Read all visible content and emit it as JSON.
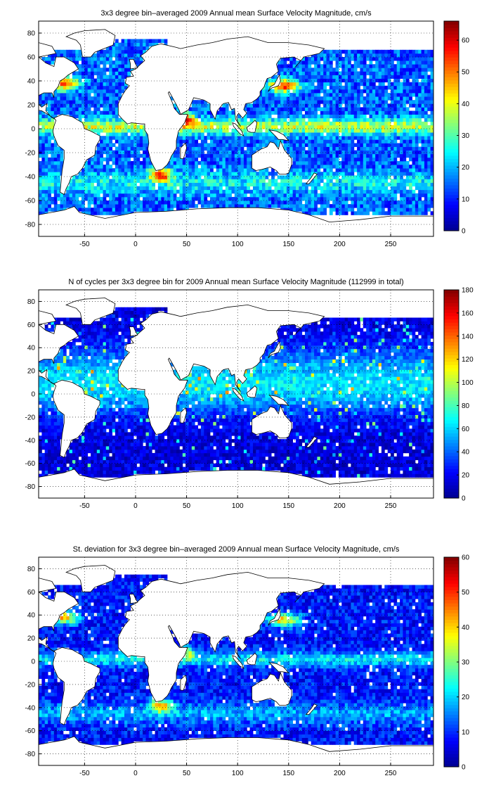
{
  "chart_data": [
    {
      "type": "heatmap",
      "title": "3x3 degree bin–averaged 2009 Annual mean Surface Velocity Magnitude, cm/s",
      "xlabel": "",
      "ylabel": "",
      "xlim": [
        -95,
        292
      ],
      "ylim": [
        -90,
        90
      ],
      "xticks": [
        -50,
        0,
        50,
        100,
        150,
        200,
        250
      ],
      "yticks": [
        -80,
        -60,
        -40,
        -20,
        0,
        20,
        40,
        60,
        80
      ],
      "grid": true,
      "colorbar": {
        "min": 0,
        "max": 66,
        "ticks": [
          0,
          10,
          20,
          30,
          40,
          50,
          60
        ]
      },
      "colormap": [
        "#00008f",
        "#0000ff",
        "#00ffff",
        "#ffff00",
        "#ff0000",
        "#800000"
      ]
    },
    {
      "type": "heatmap",
      "title": "N of cycles per 3x3 degree bin for 2009 Annual mean Surface Velocity Magnitude (112999 in total)",
      "xlabel": "",
      "ylabel": "",
      "xlim": [
        -95,
        292
      ],
      "ylim": [
        -90,
        90
      ],
      "xticks": [
        -50,
        0,
        50,
        100,
        150,
        200,
        250
      ],
      "yticks": [
        -80,
        -60,
        -40,
        -20,
        0,
        20,
        40,
        60,
        80
      ],
      "grid": true,
      "colorbar": {
        "min": 0,
        "max": 180,
        "ticks": [
          0,
          20,
          40,
          60,
          80,
          100,
          120,
          140,
          160,
          180
        ]
      },
      "colormap": [
        "#00008f",
        "#0000ff",
        "#00ffff",
        "#ffff00",
        "#ff0000",
        "#800000"
      ]
    },
    {
      "type": "heatmap",
      "title": "St. deviation for 3x3 degree bin–averaged 2009 Annual mean Surface Velocity Magnitude, cm/s",
      "xlabel": "",
      "ylabel": "",
      "xlim": [
        -95,
        292
      ],
      "ylim": [
        -90,
        90
      ],
      "xticks": [
        -50,
        0,
        50,
        100,
        150,
        200,
        250
      ],
      "yticks": [
        -80,
        -60,
        -40,
        -20,
        0,
        20,
        40,
        60,
        80
      ],
      "grid": true,
      "colorbar": {
        "min": 0,
        "max": 60,
        "ticks": [
          0,
          10,
          20,
          30,
          40,
          50,
          60
        ]
      },
      "colormap": [
        "#00008f",
        "#0000ff",
        "#00ffff",
        "#ffff00",
        "#ff0000",
        "#800000"
      ]
    }
  ]
}
